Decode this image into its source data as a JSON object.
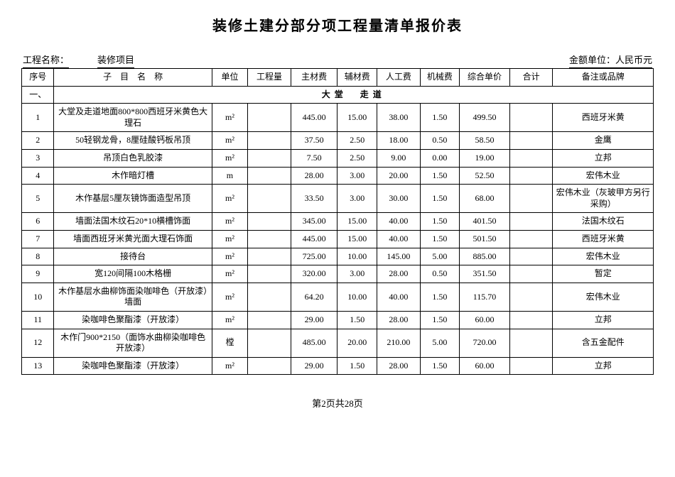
{
  "title": "装修土建分部分项工程量清单报价表",
  "meta": {
    "project_label": "工程名称：",
    "project_value": "装修项目",
    "currency_label": "金额单位：人民币元"
  },
  "columns": [
    "序号",
    "子　目　名　称",
    "单位",
    "工程量",
    "主材费",
    "辅材费",
    "人工费",
    "机械费",
    "综合单价",
    "合计",
    "备注或品牌"
  ],
  "section": {
    "seq": "一、",
    "label": "大堂　走道"
  },
  "rows": [
    {
      "seq": "1",
      "name": "大堂及走道地面800*800西班牙米黄色大理石",
      "unit": "m²",
      "qty": "",
      "main": "445.00",
      "aux": "15.00",
      "labor": "38.00",
      "mach": "1.50",
      "compu": "499.50",
      "total": "",
      "remark": "西班牙米黄"
    },
    {
      "seq": "2",
      "name": "50轻钢龙骨，8厘硅酸钙板吊顶",
      "unit": "m²",
      "qty": "",
      "main": "37.50",
      "aux": "2.50",
      "labor": "18.00",
      "mach": "0.50",
      "compu": "58.50",
      "total": "",
      "remark": "金鹰"
    },
    {
      "seq": "3",
      "name": "吊顶白色乳胶漆",
      "unit": "m²",
      "qty": "",
      "main": "7.50",
      "aux": "2.50",
      "labor": "9.00",
      "mach": "0.00",
      "compu": "19.00",
      "total": "",
      "remark": "立邦"
    },
    {
      "seq": "4",
      "name": "木作暗灯槽",
      "unit": "m",
      "qty": "",
      "main": "28.00",
      "aux": "3.00",
      "labor": "20.00",
      "mach": "1.50",
      "compu": "52.50",
      "total": "",
      "remark": "宏伟木业"
    },
    {
      "seq": "5",
      "name": "木作基层5厘灰镜饰面造型吊顶",
      "unit": "m²",
      "qty": "",
      "main": "33.50",
      "aux": "3.00",
      "labor": "30.00",
      "mach": "1.50",
      "compu": "68.00",
      "total": "",
      "remark": "宏伟木业（灰玻甲方另行采购）"
    },
    {
      "seq": "6",
      "name": "墙面法国木纹石20*10横槽饰面",
      "unit": "m²",
      "qty": "",
      "main": "345.00",
      "aux": "15.00",
      "labor": "40.00",
      "mach": "1.50",
      "compu": "401.50",
      "total": "",
      "remark": "法国木纹石"
    },
    {
      "seq": "7",
      "name": "墙面西班牙米黄光面大理石饰面",
      "unit": "m²",
      "qty": "",
      "main": "445.00",
      "aux": "15.00",
      "labor": "40.00",
      "mach": "1.50",
      "compu": "501.50",
      "total": "",
      "remark": "西班牙米黄"
    },
    {
      "seq": "8",
      "name": "接待台",
      "unit": "m²",
      "qty": "",
      "main": "725.00",
      "aux": "10.00",
      "labor": "145.00",
      "mach": "5.00",
      "compu": "885.00",
      "total": "",
      "remark": "宏伟木业"
    },
    {
      "seq": "9",
      "name": "宽120间隔100木格栅",
      "unit": "m²",
      "qty": "",
      "main": "320.00",
      "aux": "3.00",
      "labor": "28.00",
      "mach": "0.50",
      "compu": "351.50",
      "total": "",
      "remark": "暂定"
    },
    {
      "seq": "10",
      "name": "木作基层水曲柳饰面染咖啡色（开放漆）墙面",
      "unit": "m²",
      "qty": "",
      "main": "64.20",
      "aux": "10.00",
      "labor": "40.00",
      "mach": "1.50",
      "compu": "115.70",
      "total": "",
      "remark": "宏伟木业"
    },
    {
      "seq": "11",
      "name": "染咖啡色聚酯漆（开放漆）",
      "unit": "m²",
      "qty": "",
      "main": "29.00",
      "aux": "1.50",
      "labor": "28.00",
      "mach": "1.50",
      "compu": "60.00",
      "total": "",
      "remark": "立邦"
    },
    {
      "seq": "12",
      "name": "木作门900*2150（面饰水曲柳染咖啡色开放漆）",
      "unit": "樘",
      "qty": "",
      "main": "485.00",
      "aux": "20.00",
      "labor": "210.00",
      "mach": "5.00",
      "compu": "720.00",
      "total": "",
      "remark": "含五金配件"
    },
    {
      "seq": "13",
      "name": "染咖啡色聚酯漆（开放漆）",
      "unit": "m²",
      "qty": "",
      "main": "29.00",
      "aux": "1.50",
      "labor": "28.00",
      "mach": "1.50",
      "compu": "60.00",
      "total": "",
      "remark": "立邦"
    }
  ],
  "footer": "第2页共28页"
}
